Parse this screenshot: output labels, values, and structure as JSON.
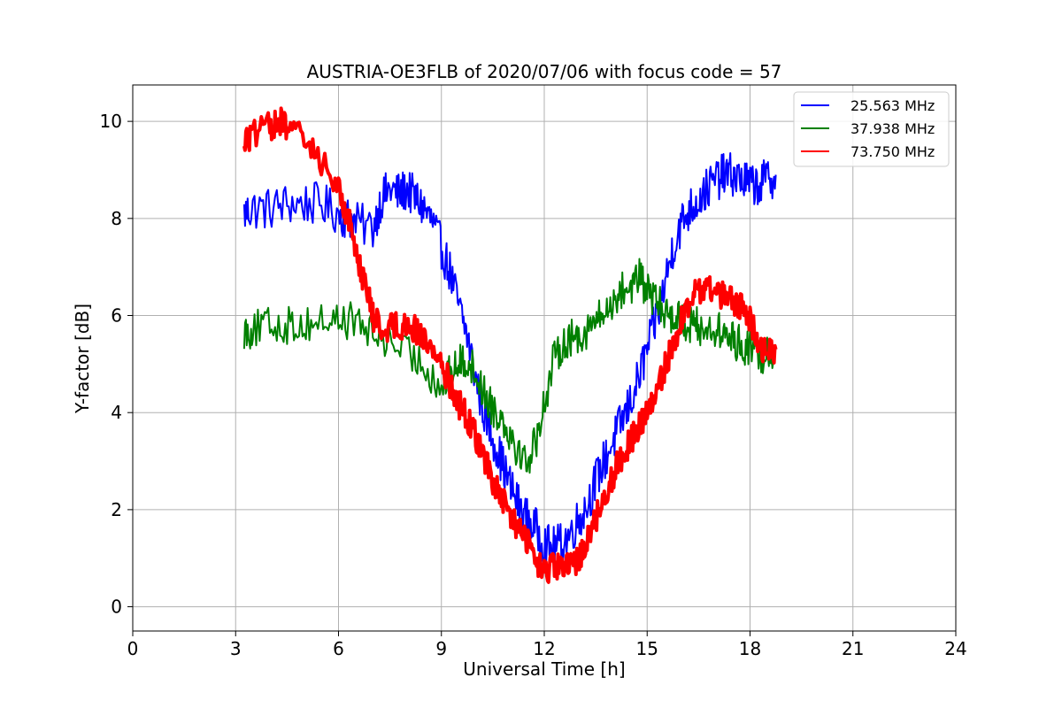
{
  "chart_data": {
    "type": "line",
    "title": "AUSTRIA-OE3FLB of 2020/07/06 with focus code = 57",
    "xlabel": "Universal Time [h]",
    "ylabel": "Y-factor [dB]",
    "xlim": [
      0,
      24
    ],
    "ylim": [
      -0.5,
      10.75
    ],
    "xticks": [
      0,
      3,
      6,
      9,
      12,
      15,
      18,
      21,
      24
    ],
    "yticks": [
      0,
      2,
      4,
      6,
      8,
      10
    ],
    "grid": true,
    "legend_position": "top-right",
    "series": [
      {
        "name": "25.563 MHz",
        "color": "#0000ff",
        "x": [
          3.25,
          3.5,
          4.0,
          4.5,
          5.0,
          5.5,
          6.0,
          6.3,
          6.5,
          7.0,
          7.25,
          7.5,
          7.75,
          8.0,
          8.25,
          8.5,
          8.75,
          9.0,
          9.25,
          9.5,
          9.75,
          10.0,
          10.25,
          10.5,
          10.75,
          11.0,
          11.25,
          11.5,
          11.75,
          12.0,
          12.25,
          12.5,
          12.75,
          13.0,
          13.25,
          13.5,
          13.75,
          14.0,
          14.25,
          14.5,
          14.75,
          15.0,
          15.25,
          15.5,
          15.75,
          16.0,
          16.25,
          16.5,
          16.75,
          17.0,
          17.25,
          17.5,
          17.75,
          18.0,
          18.25,
          18.5,
          18.75
        ],
        "y": [
          8.1,
          8.2,
          8.2,
          8.3,
          8.3,
          8.3,
          8.1,
          8.0,
          7.9,
          7.8,
          8.4,
          8.6,
          8.5,
          8.6,
          8.4,
          8.2,
          7.9,
          7.4,
          6.9,
          6.2,
          5.6,
          4.7,
          4.0,
          3.5,
          3.0,
          2.5,
          2.1,
          1.8,
          1.6,
          1.3,
          1.2,
          1.3,
          1.5,
          1.8,
          2.1,
          2.6,
          3.0,
          3.4,
          3.8,
          4.2,
          4.7,
          5.3,
          5.9,
          6.6,
          7.4,
          7.9,
          8.2,
          8.4,
          8.6,
          8.8,
          8.9,
          8.9,
          8.8,
          8.7,
          8.7,
          8.8,
          8.9
        ]
      },
      {
        "name": "37.938 MHz",
        "color": "#008000",
        "x": [
          3.25,
          3.5,
          4.0,
          4.5,
          5.0,
          5.5,
          6.0,
          6.5,
          7.0,
          7.5,
          8.0,
          8.5,
          9.0,
          9.25,
          9.5,
          9.75,
          10.0,
          10.25,
          10.5,
          10.75,
          11.0,
          11.25,
          11.5,
          11.75,
          12.0,
          12.25,
          12.5,
          12.75,
          13.0,
          13.25,
          13.5,
          13.75,
          14.0,
          14.25,
          14.5,
          14.75,
          15.0,
          15.25,
          15.5,
          15.75,
          16.0,
          16.25,
          16.5,
          16.75,
          17.0,
          17.25,
          17.5,
          17.75,
          18.0,
          18.25,
          18.5,
          18.75
        ],
        "y": [
          5.7,
          5.7,
          5.8,
          5.8,
          5.8,
          5.9,
          5.9,
          5.9,
          5.6,
          5.5,
          5.2,
          5.0,
          4.5,
          4.8,
          5.0,
          5.1,
          4.8,
          4.4,
          4.1,
          3.9,
          3.6,
          3.2,
          3.0,
          3.4,
          4.2,
          5.0,
          5.4,
          5.5,
          5.6,
          5.7,
          5.9,
          6.0,
          6.3,
          6.5,
          6.6,
          6.8,
          6.5,
          6.3,
          6.1,
          6.0,
          5.9,
          5.8,
          5.8,
          5.7,
          5.7,
          5.6,
          5.5,
          5.4,
          5.3,
          5.2,
          5.2,
          5.3
        ]
      },
      {
        "name": "73.750 MHz",
        "color": "#ff0000",
        "x": [
          3.25,
          3.5,
          4.0,
          4.25,
          4.5,
          5.0,
          5.5,
          6.0,
          6.25,
          6.5,
          6.75,
          7.0,
          7.25,
          7.5,
          7.75,
          8.0,
          8.25,
          8.5,
          8.75,
          9.0,
          9.25,
          9.5,
          9.75,
          10.0,
          10.25,
          10.5,
          10.75,
          11.0,
          11.25,
          11.5,
          11.75,
          12.0,
          12.25,
          12.5,
          12.75,
          13.0,
          13.25,
          13.5,
          13.75,
          14.0,
          14.25,
          14.5,
          14.75,
          15.0,
          15.25,
          15.5,
          15.75,
          16.0,
          16.25,
          16.5,
          16.75,
          17.0,
          17.25,
          17.5,
          17.75,
          18.0,
          18.25,
          18.5,
          18.75
        ],
        "y": [
          9.6,
          9.7,
          9.9,
          10.0,
          9.9,
          9.6,
          9.2,
          8.6,
          8.1,
          7.4,
          6.7,
          6.0,
          5.7,
          5.8,
          5.8,
          5.8,
          5.7,
          5.5,
          5.3,
          5.0,
          4.6,
          4.2,
          3.9,
          3.5,
          3.1,
          2.6,
          2.2,
          1.9,
          1.6,
          1.4,
          0.9,
          0.7,
          0.8,
          0.8,
          0.8,
          1.0,
          1.4,
          1.8,
          2.3,
          2.7,
          3.1,
          3.4,
          3.7,
          4.0,
          4.3,
          4.9,
          5.4,
          5.9,
          6.3,
          6.5,
          6.6,
          6.5,
          6.4,
          6.3,
          6.2,
          5.9,
          5.4,
          5.3,
          5.3
        ]
      }
    ]
  }
}
